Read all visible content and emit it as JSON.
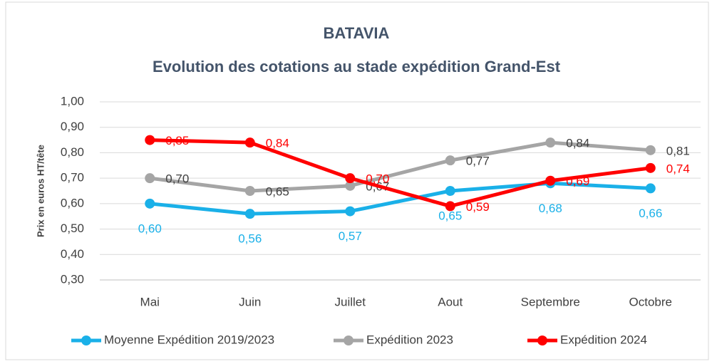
{
  "chart_data": {
    "type": "line",
    "title": "BATAVIA",
    "subtitle": "Evolution des cotations au stade expédition Grand-Est",
    "y_label": "Prix en euros HT/tête",
    "categories": [
      "Mai",
      "Juin",
      "Juillet",
      "Aout",
      "Septembre",
      "Octobre"
    ],
    "series": [
      {
        "name": "Moyenne Expédition 2019/2023",
        "color": "#1ab0e8",
        "values": [
          0.6,
          0.56,
          0.57,
          0.65,
          0.68,
          0.66
        ],
        "value_labels": [
          "0,60",
          "0,56",
          "0,57",
          "0,65",
          "0,68",
          "0,66"
        ]
      },
      {
        "name": "Expédition 2023",
        "color": "#a5a5a5",
        "values": [
          0.7,
          0.65,
          0.67,
          0.77,
          0.84,
          0.81
        ],
        "value_labels": [
          "0,70",
          "0,65",
          "0,67",
          "0,77",
          "0,84",
          "0,81"
        ]
      },
      {
        "name": "Expédition 2024",
        "color": "#ff0000",
        "values": [
          0.85,
          0.84,
          0.7,
          0.59,
          0.69,
          0.74
        ],
        "value_labels": [
          "0,85",
          "0,84",
          "0,70",
          "0,59",
          "0,69",
          "0,74"
        ]
      }
    ],
    "ylim": [
      0.3,
      1.0
    ],
    "yticks": [
      {
        "value": 0.3,
        "label": "0,30"
      },
      {
        "value": 0.4,
        "label": "0,40"
      },
      {
        "value": 0.5,
        "label": "0,50"
      },
      {
        "value": 0.6,
        "label": "0,60"
      },
      {
        "value": 0.7,
        "label": "0,70"
      },
      {
        "value": 0.8,
        "label": "0,80"
      },
      {
        "value": 0.9,
        "label": "0,90"
      },
      {
        "value": 1.0,
        "label": "1,00"
      }
    ],
    "grid": true,
    "legend": "bottom"
  }
}
